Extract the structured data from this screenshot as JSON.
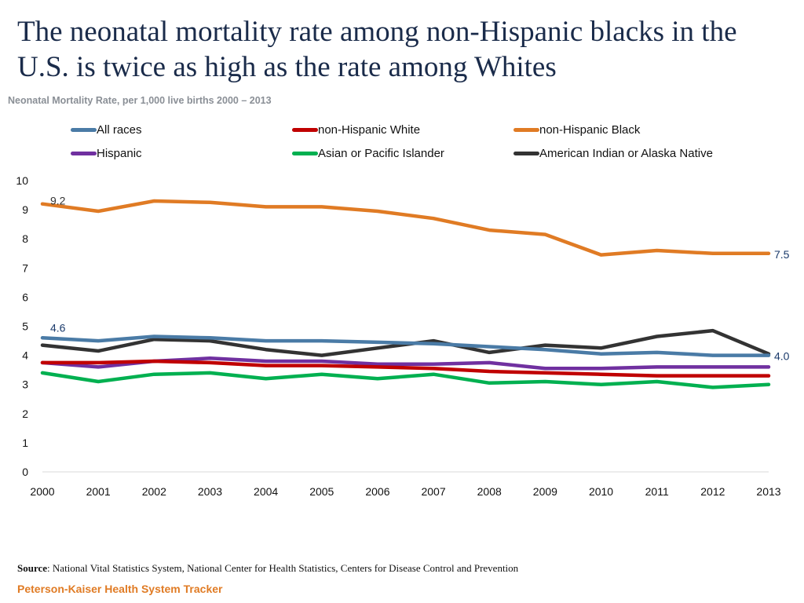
{
  "title": "The neonatal mortality rate among non-Hispanic blacks in the U.S. is twice as high as the rate among Whites",
  "subtitle": "Neonatal Mortality Rate, per 1,000 live births 2000 – 2013",
  "source_label": "Source",
  "source_text": ": National Vital Statistics System, National Center for Health Statistics, Centers for Disease Control and Prevention",
  "brand": "Peterson-Kaiser Health System Tracker",
  "chart_data": {
    "type": "line",
    "title": "Neonatal Mortality Rate, per 1,000 live births 2000 – 2013",
    "xlabel": "",
    "ylabel": "",
    "ylim": [
      0,
      10
    ],
    "yticks": [
      "0",
      "1",
      "2",
      "3",
      "4",
      "5",
      "6",
      "7",
      "8",
      "9",
      "10"
    ],
    "categories": [
      "2000",
      "2001",
      "2002",
      "2003",
      "2004",
      "2005",
      "2006",
      "2007",
      "2008",
      "2009",
      "2010",
      "2011",
      "2012",
      "2013"
    ],
    "legend_position": "top",
    "series": [
      {
        "name": "All races",
        "color": "#4a7ba6",
        "values": [
          4.6,
          4.5,
          4.65,
          4.6,
          4.5,
          4.5,
          4.45,
          4.4,
          4.3,
          4.2,
          4.05,
          4.1,
          4.0,
          4.0
        ]
      },
      {
        "name": "non-Hispanic White",
        "color": "#c00000",
        "values": [
          3.75,
          3.75,
          3.8,
          3.75,
          3.65,
          3.65,
          3.6,
          3.55,
          3.45,
          3.4,
          3.35,
          3.3,
          3.3,
          3.3
        ]
      },
      {
        "name": "non-Hispanic Black",
        "color": "#e07b24",
        "values": [
          9.2,
          8.95,
          9.3,
          9.25,
          9.1,
          9.1,
          8.95,
          8.7,
          8.3,
          8.15,
          7.45,
          7.6,
          7.5,
          7.5
        ]
      },
      {
        "name": "Hispanic",
        "color": "#7030a0",
        "values": [
          3.75,
          3.6,
          3.8,
          3.9,
          3.8,
          3.8,
          3.7,
          3.7,
          3.75,
          3.55,
          3.55,
          3.6,
          3.6,
          3.6
        ]
      },
      {
        "name": "Asian or Pacific Islander",
        "color": "#00b050",
        "values": [
          3.4,
          3.1,
          3.35,
          3.4,
          3.2,
          3.35,
          3.2,
          3.35,
          3.05,
          3.1,
          3.0,
          3.1,
          2.9,
          3.0
        ]
      },
      {
        "name": "American Indian or Alaska Native",
        "color": "#333333",
        "values": [
          4.35,
          4.15,
          4.55,
          4.5,
          4.2,
          4.0,
          4.25,
          4.5,
          4.1,
          4.35,
          4.25,
          4.65,
          4.85,
          4.05
        ]
      }
    ],
    "data_labels": [
      {
        "series": "non-Hispanic Black",
        "index": 0,
        "text": "9.2",
        "color": "#333333",
        "side": "right"
      },
      {
        "series": "non-Hispanic Black",
        "index": 13,
        "text": "7.5",
        "color": "#1a3a6b",
        "side": "end"
      },
      {
        "series": "All races",
        "index": 0,
        "text": "4.6",
        "color": "#1a3a6b",
        "side": "right"
      },
      {
        "series": "All races",
        "index": 13,
        "text": "4.0",
        "color": "#1a3a6b",
        "side": "end"
      }
    ]
  }
}
